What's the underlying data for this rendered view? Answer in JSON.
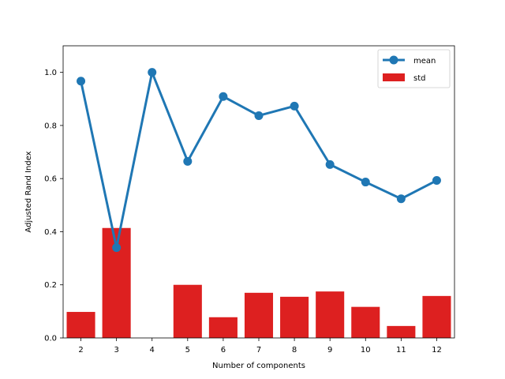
{
  "chart_data": {
    "type": "bar",
    "xlabel": "Number of components",
    "ylabel": "Adjusted Rand Index",
    "categories": [
      "2",
      "3",
      "4",
      "5",
      "6",
      "7",
      "8",
      "9",
      "10",
      "11",
      "12"
    ],
    "ylim": [
      0,
      1.1
    ],
    "yticks": [
      "0.0",
      "0.2",
      "0.4",
      "0.6",
      "0.8",
      "1.0"
    ],
    "grid": false,
    "legend_position": "top-right",
    "series": [
      {
        "name": "mean",
        "kind": "line",
        "marker": "circle",
        "color": "#1f77b4",
        "values": [
          0.967,
          0.34,
          1.0,
          0.665,
          0.909,
          0.837,
          0.873,
          0.653,
          0.587,
          0.524,
          0.593
        ]
      },
      {
        "name": "std",
        "kind": "bar",
        "color": "#dd2020",
        "values": [
          0.098,
          0.414,
          0.0,
          0.2,
          0.078,
          0.17,
          0.155,
          0.175,
          0.117,
          0.045,
          0.158
        ]
      }
    ]
  }
}
